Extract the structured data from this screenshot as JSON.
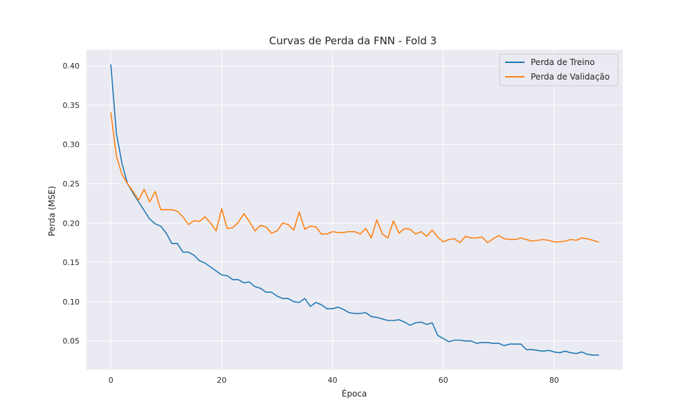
{
  "chart_data": {
    "type": "line",
    "title": "Curvas de Perda da FNN - Fold 3",
    "xlabel": "Época",
    "ylabel": "Perda (MSE)",
    "xlim": [
      -4.4,
      92.4
    ],
    "ylim": [
      0.0136,
      0.4203
    ],
    "xticks": [
      0,
      20,
      40,
      60,
      80
    ],
    "yticks": [
      0.05,
      0.1,
      0.15,
      0.2,
      0.25,
      0.3,
      0.35,
      0.4
    ],
    "ytick_labels": [
      "0.05",
      "0.10",
      "0.15",
      "0.20",
      "0.25",
      "0.30",
      "0.35",
      "0.40"
    ],
    "grid": true,
    "legend_position": "top-right",
    "series": [
      {
        "name": "Perda de Treino",
        "color": "#1f77b4",
        "values": [
          0.401,
          0.314,
          0.276,
          0.25,
          0.238,
          0.227,
          0.216,
          0.205,
          0.199,
          0.196,
          0.187,
          0.174,
          0.174,
          0.163,
          0.163,
          0.159,
          0.152,
          0.149,
          0.144,
          0.139,
          0.134,
          0.133,
          0.128,
          0.128,
          0.124,
          0.125,
          0.119,
          0.117,
          0.112,
          0.112,
          0.107,
          0.104,
          0.104,
          0.1,
          0.099,
          0.104,
          0.094,
          0.099,
          0.096,
          0.091,
          0.091,
          0.093,
          0.09,
          0.086,
          0.085,
          0.085,
          0.086,
          0.081,
          0.08,
          0.078,
          0.076,
          0.076,
          0.077,
          0.074,
          0.07,
          0.073,
          0.074,
          0.071,
          0.073,
          0.057,
          0.053,
          0.049,
          0.051,
          0.051,
          0.05,
          0.05,
          0.047,
          0.048,
          0.048,
          0.047,
          0.047,
          0.044,
          0.046,
          0.046,
          0.046,
          0.039,
          0.039,
          0.038,
          0.037,
          0.038,
          0.036,
          0.035,
          0.037,
          0.035,
          0.034,
          0.036,
          0.033,
          0.032,
          0.032
        ]
      },
      {
        "name": "Perda de Validação",
        "color": "#ff7f0e",
        "values": [
          0.34,
          0.285,
          0.262,
          0.25,
          0.24,
          0.229,
          0.243,
          0.227,
          0.24,
          0.217,
          0.217,
          0.217,
          0.215,
          0.208,
          0.198,
          0.203,
          0.202,
          0.208,
          0.2,
          0.19,
          0.218,
          0.193,
          0.194,
          0.201,
          0.212,
          0.202,
          0.19,
          0.197,
          0.195,
          0.187,
          0.19,
          0.2,
          0.198,
          0.191,
          0.214,
          0.192,
          0.196,
          0.195,
          0.186,
          0.186,
          0.189,
          0.188,
          0.188,
          0.189,
          0.189,
          0.186,
          0.193,
          0.181,
          0.204,
          0.186,
          0.181,
          0.203,
          0.187,
          0.193,
          0.192,
          0.186,
          0.189,
          0.183,
          0.191,
          0.182,
          0.176,
          0.179,
          0.18,
          0.175,
          0.183,
          0.181,
          0.181,
          0.182,
          0.175,
          0.18,
          0.184,
          0.18,
          0.179,
          0.179,
          0.181,
          0.179,
          0.177,
          0.178,
          0.179,
          0.178,
          0.176,
          0.176,
          0.177,
          0.179,
          0.178,
          0.181,
          0.18,
          0.178,
          0.176
        ]
      }
    ]
  }
}
